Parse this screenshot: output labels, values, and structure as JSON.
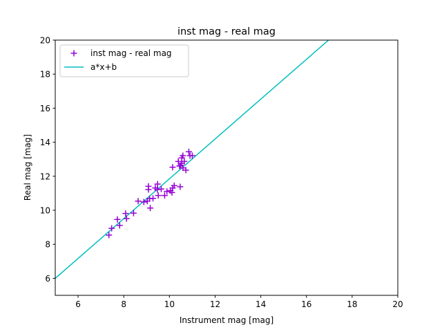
{
  "chart_data": {
    "type": "scatter",
    "title": "inst mag - real mag",
    "xlabel": "Instrument mag [mag]",
    "ylabel": "Real mag [mag]",
    "xlim": [
      5,
      20
    ],
    "ylim": [
      5,
      20
    ],
    "xticks": [
      6,
      8,
      10,
      12,
      14,
      16,
      18,
      20
    ],
    "yticks": [
      6,
      8,
      10,
      12,
      14,
      16,
      18,
      20
    ],
    "grid": false,
    "legend_placement": "top-left",
    "series": [
      {
        "name": "inst mag - real mag",
        "type": "scatter",
        "marker": "+",
        "color": "#9400d3",
        "x": [
          7.35,
          7.47,
          7.82,
          7.72,
          8.12,
          8.08,
          8.43,
          8.63,
          8.88,
          9.03,
          9.13,
          9.28,
          9.16,
          9.08,
          9.08,
          9.38,
          9.48,
          9.47,
          9.64,
          9.51,
          9.79,
          9.89,
          10.04,
          10.11,
          10.14,
          10.21,
          10.47,
          10.14,
          10.44,
          10.72,
          10.39,
          10.54,
          10.59,
          10.85,
          10.9,
          11.0,
          10.65,
          10.54,
          10.49,
          10.59
        ],
        "y": [
          8.54,
          8.94,
          9.11,
          9.46,
          9.51,
          9.81,
          9.83,
          10.54,
          10.49,
          10.54,
          10.68,
          10.7,
          10.13,
          11.41,
          11.22,
          11.31,
          11.54,
          11.22,
          11.25,
          10.87,
          10.87,
          11.11,
          11.15,
          11.04,
          11.31,
          11.45,
          11.38,
          12.53,
          12.6,
          12.36,
          12.87,
          13.08,
          13.21,
          13.44,
          13.21,
          13.21,
          12.87,
          12.76,
          12.63,
          12.49
        ]
      },
      {
        "name": "a*x+b",
        "type": "line",
        "color": "#00bfbf",
        "a": 1.17,
        "b": 0.15
      }
    ]
  }
}
